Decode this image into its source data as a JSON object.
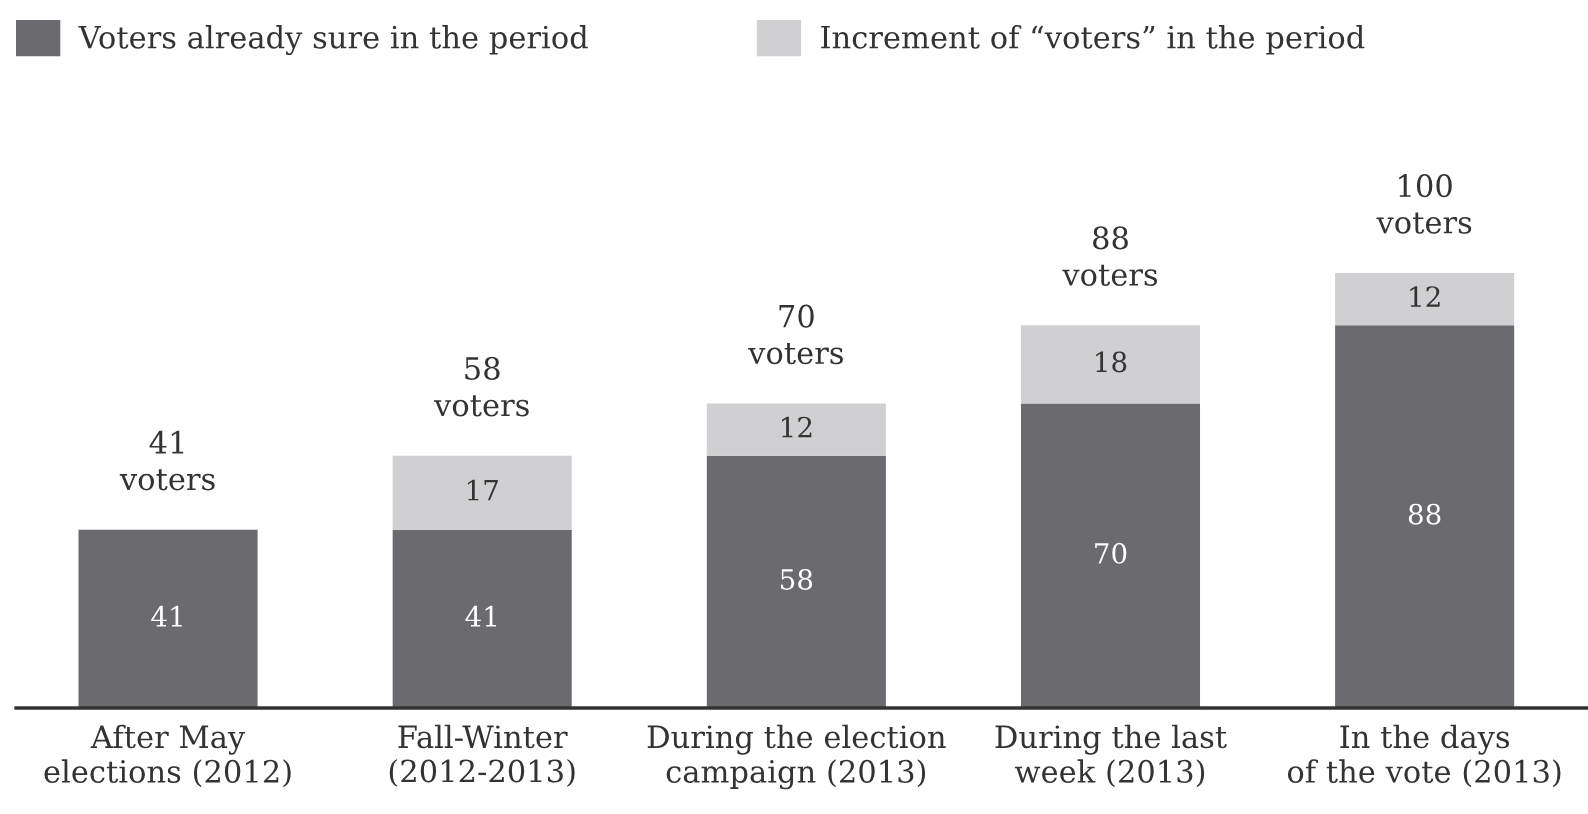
{
  "chart_data": {
    "type": "bar",
    "stacked": true,
    "categories": [
      "After May\nelections (2012)",
      "Fall-Winter\n(2012-2013)",
      "During the election\ncampaign (2013)",
      "During the last\nweek (2013)",
      "In the days\nof the vote (2013)"
    ],
    "series": [
      {
        "name": "Voters already sure in the period",
        "color": "#6b6b6f",
        "values": [
          41,
          41,
          58,
          70,
          88
        ]
      },
      {
        "name": "Increment of “voters” in the period",
        "color": "#d0d0d2",
        "values": [
          null,
          17,
          12,
          18,
          12
        ]
      }
    ],
    "totals": [
      "41\nvoters",
      "58\nvoters",
      "70\nvoters",
      "88\nvoters",
      "100\nvoters"
    ],
    "data_labels": true,
    "tick_labels": "x",
    "legend": "top left"
  }
}
